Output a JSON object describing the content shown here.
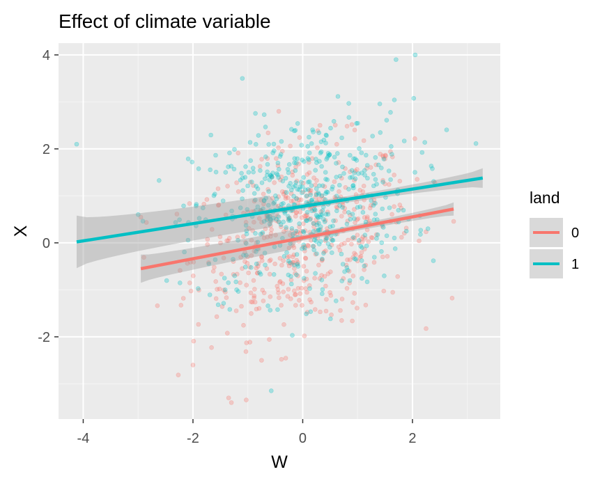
{
  "chart_data": {
    "type": "scatter",
    "title": "Effect of climate variable",
    "xlabel": "W",
    "ylabel": "X",
    "xlim": [
      -4.45,
      3.6
    ],
    "ylim": [
      -3.75,
      4.25
    ],
    "xticks": [
      -4,
      -2,
      0,
      2
    ],
    "yticks": [
      -2,
      0,
      2,
      4
    ],
    "grid": true,
    "legend": {
      "title": "land",
      "placement": "right"
    },
    "point_count_per_series": 500,
    "series": [
      {
        "name": "0",
        "color": "#F8766D",
        "fit_line": {
          "x": [
            -2.95,
            2.75
          ],
          "y": [
            -0.55,
            0.72
          ]
        },
        "ci_halfwidth": [
          0.15,
          0.06,
          0.14
        ],
        "points": {
          "x_range": [
            -2.95,
            2.75
          ],
          "y_range": [
            -3.4,
            2.8
          ],
          "center": [
            0.0,
            0.1
          ]
        }
      },
      {
        "name": "1",
        "color": "#00BFC4",
        "fit_line": {
          "x": [
            -4.12,
            3.28
          ],
          "y": [
            0.02,
            1.38
          ]
        },
        "ci_halfwidth": [
          0.28,
          0.06,
          0.21
        ],
        "points": {
          "x_range": [
            -4.12,
            3.28
          ],
          "y_range": [
            -3.2,
            4.0
          ],
          "center": [
            0.0,
            0.8
          ]
        }
      }
    ]
  }
}
